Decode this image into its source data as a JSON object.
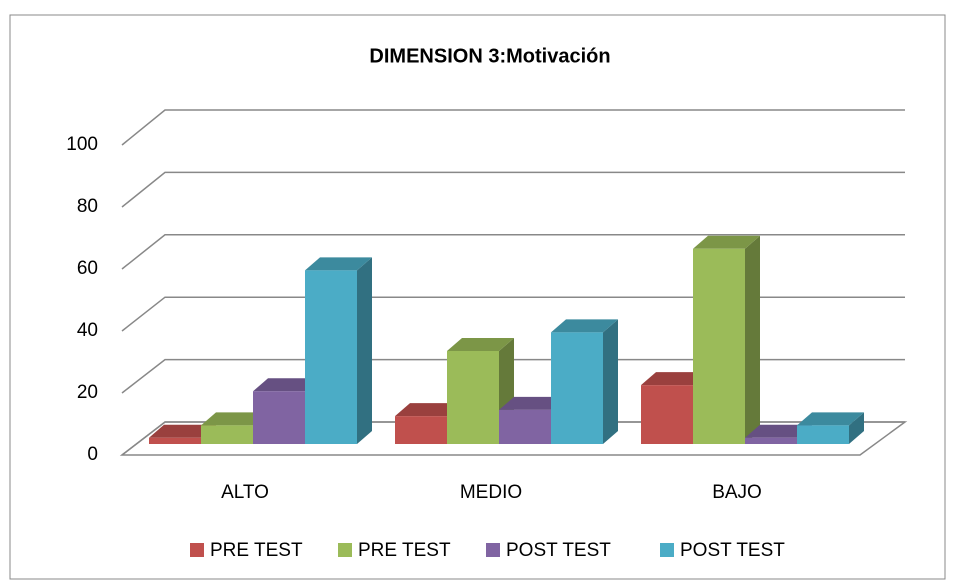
{
  "chart_data": {
    "type": "bar3d",
    "title": "DIMENSION  3:Motivación",
    "categories": [
      "ALTO",
      "MEDIO",
      "BAJO"
    ],
    "series": [
      {
        "name": "PRE TEST",
        "color": "#c0504d",
        "values": [
          2,
          9,
          19
        ]
      },
      {
        "name": "PRE TEST",
        "color": "#9bbb59",
        "values": [
          6,
          30,
          63
        ]
      },
      {
        "name": "POST TEST",
        "color": "#8064a2",
        "values": [
          17,
          11,
          2
        ]
      },
      {
        "name": "POST TEST",
        "color": "#4bacc6",
        "values": [
          56,
          36,
          6
        ]
      }
    ],
    "ylim": [
      0,
      100
    ],
    "yticks": [
      0,
      20,
      40,
      60,
      80,
      100
    ],
    "grid": true,
    "legend": "bottom"
  }
}
